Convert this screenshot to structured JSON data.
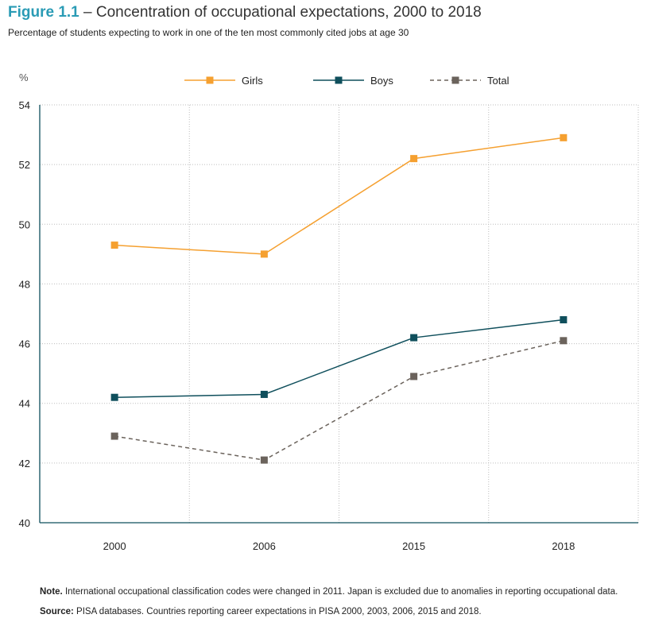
{
  "figure": {
    "label": "Figure 1.1",
    "separator": "–",
    "title": "Concentration of occupational expectations, 2000 to 2018",
    "subtitle": "Percentage of students expecting to work in one of the ten most commonly cited jobs at age 30"
  },
  "notes": {
    "note_label": "Note.",
    "note_text": "International occupational classification codes were changed in 2011. Japan is excluded due to anomalies in reporting occupational data.",
    "source_label": "Source:",
    "source_text": "PISA databases. Countries reporting career expectations in PISA 2000, 2003, 2006, 2015 and 2018."
  },
  "chart_data": {
    "type": "line",
    "categories": [
      "2000",
      "2006",
      "2015",
      "2018"
    ],
    "y_unit": "%",
    "ylim": [
      40,
      54
    ],
    "yticks": [
      40,
      42,
      44,
      46,
      48,
      50,
      52,
      54
    ],
    "grid": true,
    "legend_position": "top",
    "series": [
      {
        "name": "Girls",
        "values": [
          49.3,
          49.0,
          52.2,
          52.9
        ],
        "color": "#f5a030",
        "dash": "solid"
      },
      {
        "name": "Boys",
        "values": [
          44.2,
          44.3,
          46.2,
          46.8
        ],
        "color": "#0f4f5c",
        "dash": "solid"
      },
      {
        "name": "Total",
        "values": [
          42.9,
          42.1,
          44.9,
          46.1
        ],
        "color": "#6b635c",
        "dash": "dashed"
      }
    ]
  }
}
